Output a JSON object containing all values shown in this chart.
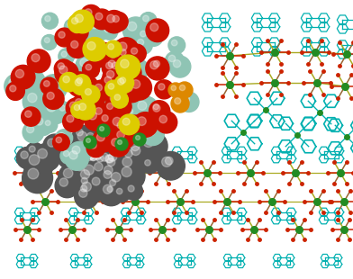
{
  "background_color": "#ffffff",
  "figsize": [
    3.92,
    3.1
  ],
  "dpi": 100,
  "atom_colors": {
    "carbon_dark": "#555555",
    "carbon_light": "#8fc4b4",
    "oxygen": "#cc1100",
    "sulfur": "#ddcc00",
    "phosphorus": "#dd8800",
    "chromium": "#228B22",
    "cyan_ligand": "#00b0b0",
    "brown_ligand": "#996633",
    "yellow_ligand": "#aaaa22",
    "red_stick": "#cc2200"
  },
  "cr_upper_right": {
    "x": [
      255,
      305,
      350,
      385,
      255,
      305,
      352,
      383
    ],
    "y": [
      248,
      252,
      252,
      250,
      216,
      218,
      218,
      214
    ]
  },
  "cr_lower_band": {
    "x": [
      30,
      78,
      130,
      180,
      230,
      278,
      328,
      378,
      50,
      100,
      150,
      200,
      252,
      302,
      352,
      382
    ],
    "y": [
      118,
      118,
      118,
      118,
      118,
      118,
      118,
      118,
      86,
      86,
      86,
      86,
      86,
      86,
      86,
      86
    ]
  },
  "cr_lower2": {
    "x": [
      30,
      80,
      132,
      180,
      232,
      282,
      332,
      382
    ],
    "y": [
      55,
      55,
      55,
      55,
      55,
      55,
      55,
      55
    ]
  }
}
